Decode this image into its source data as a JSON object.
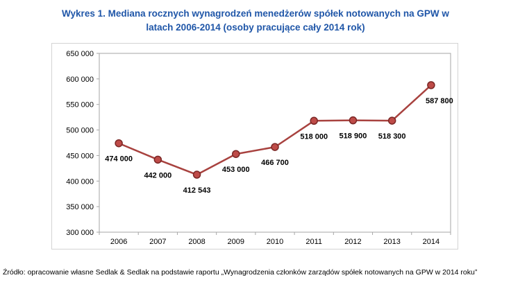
{
  "title": "Wykres 1. Mediana rocznych wynagrodzeń menedżerów spółek notowanych na GPW w latach 2006-2014 (osoby pracujące cały 2014 rok)",
  "source": "Źródło: opracowanie własne Sedlak & Sedlak na podstawie raportu „Wynagrodzenia członków zarządów spółek notowanych na GPW w 2014 roku”",
  "chart_data": {
    "type": "line",
    "title": "Mediana rocznych wynagrodzeń menedżerów spółek notowanych na GPW w latach 2006-2014",
    "categories": [
      "2006",
      "2007",
      "2008",
      "2009",
      "2010",
      "2011",
      "2012",
      "2013",
      "2014"
    ],
    "values": [
      474000,
      442000,
      412543,
      453000,
      466700,
      518000,
      518900,
      518300,
      587800
    ],
    "point_labels": [
      "474 000",
      "442 000",
      "412 543",
      "453 000",
      "466 700",
      "518 000",
      "518 900",
      "518 300",
      "587 800"
    ],
    "y_ticks": [
      "650 000",
      "600 000",
      "550 000",
      "500 000",
      "450 000",
      "400 000",
      "350 000",
      "300 000"
    ],
    "ylim": [
      300000,
      650000
    ],
    "y_step": 50000,
    "xlabel": "",
    "ylabel": "",
    "grid": false,
    "legend": "none",
    "colors": {
      "title": "#1F56A8",
      "line": "#A8423F",
      "marker_fill": "#BE4B48",
      "marker_stroke": "#7A2725",
      "plot_border": "#A6A6A6",
      "chart_border": "#D3D3D3",
      "label_text": "#000000"
    }
  }
}
